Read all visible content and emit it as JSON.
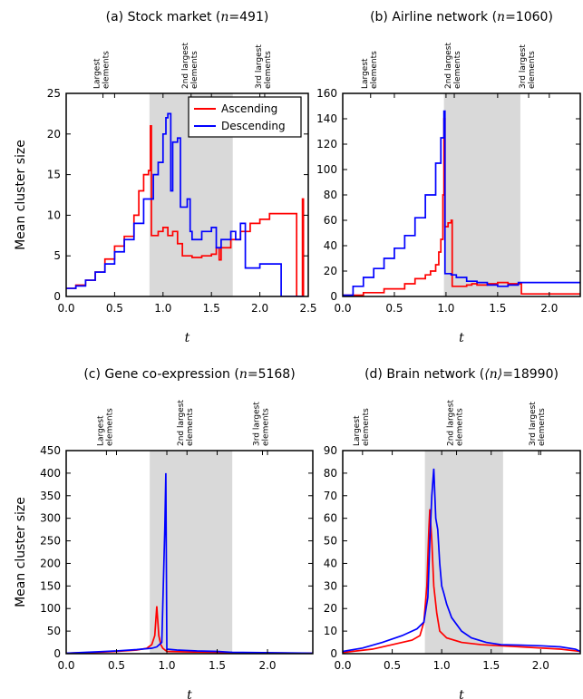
{
  "figure": {
    "ylabel": "Mean cluster size",
    "xlabel": "t",
    "legend": {
      "entries": [
        {
          "name": "Ascending",
          "color": "#ff0000"
        },
        {
          "name": "Descending",
          "color": "#0000ff"
        }
      ]
    },
    "top_labels": [
      "Largest\nelements",
      "2nd largest\nelements",
      "3rd largest\nelements"
    ]
  },
  "chart_data": [
    {
      "type": "line",
      "title_prefix": "(a) Stock market (",
      "title_symbol": "n",
      "title_suffix": "=491)",
      "xlim": [
        0,
        2.5
      ],
      "ylim": [
        0,
        25
      ],
      "xticks": [
        0.0,
        0.5,
        1.0,
        1.5,
        2.0,
        2.5
      ],
      "yticks": [
        0,
        5,
        10,
        15,
        20,
        25
      ],
      "shade": [
        0.86,
        1.72
      ],
      "top_positions": [
        0.38,
        1.29,
        2.05
      ],
      "legend_position": "top-right",
      "series": [
        {
          "name": "Ascending",
          "color": "#ff0000",
          "step": true,
          "points": [
            [
              0,
              1
            ],
            [
              0.1,
              1.4
            ],
            [
              0.2,
              2
            ],
            [
              0.3,
              3
            ],
            [
              0.4,
              4.6
            ],
            [
              0.5,
              6.2
            ],
            [
              0.6,
              7.4
            ],
            [
              0.7,
              10
            ],
            [
              0.75,
              13
            ],
            [
              0.8,
              15
            ],
            [
              0.85,
              15.5
            ],
            [
              0.87,
              21
            ],
            [
              0.88,
              7.5
            ],
            [
              0.95,
              8
            ],
            [
              1.0,
              8.5
            ],
            [
              1.05,
              7.5
            ],
            [
              1.1,
              8
            ],
            [
              1.15,
              6.5
            ],
            [
              1.2,
              5
            ],
            [
              1.3,
              4.8
            ],
            [
              1.4,
              5
            ],
            [
              1.5,
              5.2
            ],
            [
              1.55,
              6
            ],
            [
              1.58,
              4.5
            ],
            [
              1.6,
              6
            ],
            [
              1.7,
              7
            ],
            [
              1.8,
              8
            ],
            [
              1.9,
              9
            ],
            [
              2.0,
              9.5
            ],
            [
              2.1,
              10.2
            ],
            [
              2.3,
              10.2
            ],
            [
              2.38,
              0
            ],
            [
              2.4,
              0
            ],
            [
              2.44,
              12
            ],
            [
              2.45,
              0
            ]
          ]
        },
        {
          "name": "Descending",
          "color": "#0000ff",
          "step": true,
          "points": [
            [
              0,
              1
            ],
            [
              0.1,
              1.3
            ],
            [
              0.2,
              2
            ],
            [
              0.3,
              3
            ],
            [
              0.4,
              4
            ],
            [
              0.5,
              5.5
            ],
            [
              0.6,
              7
            ],
            [
              0.7,
              9
            ],
            [
              0.8,
              12
            ],
            [
              0.9,
              15
            ],
            [
              0.95,
              16.5
            ],
            [
              1.0,
              20
            ],
            [
              1.03,
              22
            ],
            [
              1.05,
              22.5
            ],
            [
              1.08,
              13
            ],
            [
              1.1,
              19
            ],
            [
              1.15,
              19.5
            ],
            [
              1.18,
              11
            ],
            [
              1.2,
              11
            ],
            [
              1.25,
              12
            ],
            [
              1.28,
              8
            ],
            [
              1.3,
              7
            ],
            [
              1.4,
              8
            ],
            [
              1.5,
              8.5
            ],
            [
              1.55,
              6
            ],
            [
              1.6,
              7
            ],
            [
              1.7,
              8
            ],
            [
              1.75,
              7
            ],
            [
              1.8,
              9
            ],
            [
              1.85,
              3.5
            ],
            [
              2.0,
              4
            ],
            [
              2.2,
              4
            ],
            [
              2.22,
              0
            ],
            [
              2.45,
              0
            ]
          ]
        }
      ]
    },
    {
      "type": "line",
      "title_prefix": "(b) Airline network (",
      "title_symbol": "n",
      "title_suffix": "=1060)",
      "xlim": [
        0,
        2.3
      ],
      "ylim": [
        0,
        160
      ],
      "xticks": [
        0.0,
        0.5,
        1.0,
        1.5,
        2.0
      ],
      "yticks": [
        0,
        20,
        40,
        60,
        80,
        100,
        120,
        140,
        160
      ],
      "shade": [
        0.98,
        1.72
      ],
      "top_positions": [
        0.27,
        1.08,
        1.8
      ],
      "legend_position": "none",
      "series": [
        {
          "name": "Ascending",
          "color": "#ff0000",
          "step": true,
          "points": [
            [
              0,
              1
            ],
            [
              0.2,
              3
            ],
            [
              0.4,
              6
            ],
            [
              0.6,
              10
            ],
            [
              0.7,
              14
            ],
            [
              0.8,
              17
            ],
            [
              0.85,
              20
            ],
            [
              0.9,
              25
            ],
            [
              0.93,
              35
            ],
            [
              0.95,
              45
            ],
            [
              0.97,
              80
            ],
            [
              0.98,
              140
            ],
            [
              0.99,
              55
            ],
            [
              1.02,
              58
            ],
            [
              1.05,
              60
            ],
            [
              1.06,
              8
            ],
            [
              1.2,
              9
            ],
            [
              1.25,
              10
            ],
            [
              1.3,
              9
            ],
            [
              1.4,
              10
            ],
            [
              1.5,
              11
            ],
            [
              1.6,
              10
            ],
            [
              1.73,
              2
            ],
            [
              2.3,
              2
            ]
          ]
        },
        {
          "name": "Descending",
          "color": "#0000ff",
          "step": true,
          "points": [
            [
              0,
              1
            ],
            [
              0.1,
              8
            ],
            [
              0.2,
              15
            ],
            [
              0.3,
              22
            ],
            [
              0.4,
              30
            ],
            [
              0.5,
              38
            ],
            [
              0.6,
              48
            ],
            [
              0.7,
              62
            ],
            [
              0.8,
              80
            ],
            [
              0.9,
              105
            ],
            [
              0.95,
              125
            ],
            [
              0.98,
              146
            ],
            [
              0.99,
              18
            ],
            [
              1.05,
              17
            ],
            [
              1.1,
              15
            ],
            [
              1.2,
              12
            ],
            [
              1.3,
              11
            ],
            [
              1.4,
              9
            ],
            [
              1.5,
              8
            ],
            [
              1.6,
              9
            ],
            [
              1.7,
              11
            ],
            [
              2.3,
              11
            ]
          ]
        }
      ]
    },
    {
      "type": "line",
      "title_prefix": "(c) Gene co-expression (",
      "title_symbol": "n",
      "title_suffix": "=5168)",
      "xlim": [
        0,
        2.45
      ],
      "ylim": [
        0,
        450
      ],
      "xticks": [
        0.0,
        0.5,
        1.0,
        1.5,
        2.0
      ],
      "yticks": [
        0,
        50,
        100,
        150,
        200,
        250,
        300,
        350,
        400,
        450
      ],
      "shade": [
        0.83,
        1.65
      ],
      "top_positions": [
        0.4,
        1.2,
        1.95
      ],
      "legend_position": "none",
      "series": [
        {
          "name": "Ascending",
          "color": "#ff0000",
          "step": false,
          "points": [
            [
              0,
              1
            ],
            [
              0.3,
              3
            ],
            [
              0.5,
              5
            ],
            [
              0.7,
              8
            ],
            [
              0.8,
              12
            ],
            [
              0.85,
              20
            ],
            [
              0.88,
              40
            ],
            [
              0.9,
              105
            ],
            [
              0.92,
              40
            ],
            [
              0.94,
              20
            ],
            [
              0.96,
              12
            ],
            [
              1.0,
              5
            ],
            [
              1.2,
              4
            ],
            [
              1.5,
              3
            ],
            [
              1.6,
              2
            ],
            [
              2.45,
              1
            ]
          ]
        },
        {
          "name": "Descending",
          "color": "#0000ff",
          "step": false,
          "points": [
            [
              0,
              1
            ],
            [
              0.3,
              4
            ],
            [
              0.5,
              6
            ],
            [
              0.7,
              9
            ],
            [
              0.85,
              12
            ],
            [
              0.9,
              15
            ],
            [
              0.95,
              25
            ],
            [
              0.98,
              280
            ],
            [
              0.99,
              400
            ],
            [
              1.0,
              10
            ],
            [
              1.1,
              8
            ],
            [
              1.3,
              6
            ],
            [
              1.5,
              5
            ],
            [
              1.65,
              3
            ],
            [
              2.45,
              1
            ]
          ]
        }
      ]
    },
    {
      "type": "line",
      "title_prefix": "(d) Brain network (",
      "title_symbol": "⟨n⟩",
      "title_suffix": "=18990)",
      "xlim": [
        0,
        2.4
      ],
      "ylim": [
        0,
        90
      ],
      "xticks": [
        0.0,
        0.5,
        1.0,
        1.5,
        2.0
      ],
      "yticks": [
        0,
        10,
        20,
        30,
        40,
        50,
        60,
        70,
        80,
        90
      ],
      "shade": [
        0.83,
        1.62
      ],
      "top_positions": [
        0.2,
        1.15,
        1.98
      ],
      "legend_position": "none",
      "series": [
        {
          "name": "Ascending",
          "color": "#ff0000",
          "step": false,
          "points": [
            [
              0,
              0.5
            ],
            [
              0.3,
              2
            ],
            [
              0.5,
              4
            ],
            [
              0.7,
              6
            ],
            [
              0.78,
              8
            ],
            [
              0.82,
              14
            ],
            [
              0.85,
              30
            ],
            [
              0.87,
              55
            ],
            [
              0.88,
              64
            ],
            [
              0.9,
              50
            ],
            [
              0.92,
              30
            ],
            [
              0.95,
              18
            ],
            [
              0.98,
              10
            ],
            [
              1.05,
              7
            ],
            [
              1.2,
              5
            ],
            [
              1.4,
              4
            ],
            [
              1.6,
              3.5
            ],
            [
              1.8,
              3
            ],
            [
              2.0,
              2.5
            ],
            [
              2.2,
              2
            ],
            [
              2.4,
              1
            ]
          ]
        },
        {
          "name": "Descending",
          "color": "#0000ff",
          "step": false,
          "points": [
            [
              0,
              1
            ],
            [
              0.2,
              2.5
            ],
            [
              0.4,
              5
            ],
            [
              0.6,
              8
            ],
            [
              0.75,
              11
            ],
            [
              0.82,
              14
            ],
            [
              0.86,
              25
            ],
            [
              0.88,
              50
            ],
            [
              0.9,
              70
            ],
            [
              0.92,
              82
            ],
            [
              0.94,
              60
            ],
            [
              0.96,
              55
            ],
            [
              0.98,
              40
            ],
            [
              1.0,
              30
            ],
            [
              1.02,
              27
            ],
            [
              1.05,
              22
            ],
            [
              1.1,
              16
            ],
            [
              1.2,
              10
            ],
            [
              1.3,
              7
            ],
            [
              1.45,
              5
            ],
            [
              1.6,
              4
            ],
            [
              1.8,
              3.8
            ],
            [
              2.0,
              3.5
            ],
            [
              2.2,
              3
            ],
            [
              2.35,
              2
            ],
            [
              2.4,
              1
            ]
          ]
        }
      ]
    }
  ]
}
